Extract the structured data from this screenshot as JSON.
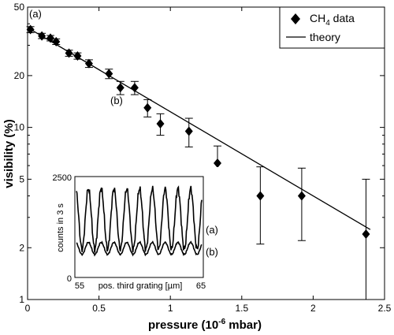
{
  "chart_data": [
    {
      "type": "scatter",
      "title": "",
      "xlabel": "pressure (10^-6 mbar)",
      "xlabel_parts": {
        "pre": "pressure (10",
        "sup": "-6",
        "post": " mbar)"
      },
      "ylabel": "visibility (%)",
      "xlim": [
        0,
        2.5
      ],
      "ylim": [
        1,
        50
      ],
      "yscale": "log",
      "x_ticks": [
        "0",
        "0.5",
        "1",
        "1.5",
        "2",
        "2.5"
      ],
      "y_ticks": [
        "1",
        "2",
        "5",
        "10",
        "20",
        "50"
      ],
      "legend": {
        "placement": "top-right",
        "entries": [
          {
            "label_main": "CH",
            "label_sub": "4",
            "label_tail": " data",
            "marker": "diamond"
          },
          {
            "label_main": "theory",
            "marker": "line"
          }
        ]
      },
      "annotations": [
        "(a)",
        "(b)"
      ],
      "series": [
        {
          "name": "CH4 data",
          "points": [
            {
              "x": 0.02,
              "y": 37,
              "err": 1.5
            },
            {
              "x": 0.1,
              "y": 34,
              "err": 1.2
            },
            {
              "x": 0.16,
              "y": 33,
              "err": 1.2
            },
            {
              "x": 0.2,
              "y": 31.5,
              "err": 1.2
            },
            {
              "x": 0.29,
              "y": 27,
              "err": 1.1
            },
            {
              "x": 0.35,
              "y": 26,
              "err": 1.1
            },
            {
              "x": 0.43,
              "y": 23.5,
              "err": 1.2
            },
            {
              "x": 0.57,
              "y": 20.5,
              "err": 1.3
            },
            {
              "x": 0.65,
              "y": 17,
              "err": 1.5
            },
            {
              "x": 0.75,
              "y": 17,
              "err": 1.5
            },
            {
              "x": 0.84,
              "y": 13,
              "err": 1.5
            },
            {
              "x": 0.93,
              "y": 10.5,
              "err": 1.5
            },
            {
              "x": 1.13,
              "y": 9.5,
              "err": 1.8
            },
            {
              "x": 1.33,
              "y": 6.2,
              "err": 1.6
            },
            {
              "x": 1.63,
              "y": 4.0,
              "err": 1.9
            },
            {
              "x": 1.92,
              "y": 4.0,
              "err": 1.8
            },
            {
              "x": 2.37,
              "y": 2.4,
              "err": 2.6
            }
          ]
        },
        {
          "name": "theory",
          "type": "line",
          "x": [
            0,
            2.4
          ],
          "y": [
            38,
            2.55
          ]
        }
      ]
    },
    {
      "type": "line",
      "title": "",
      "xlabel": "pos. third grating [µm]",
      "ylabel": "counts in 3 s",
      "xlim": [
        55,
        65
      ],
      "ylim": [
        0,
        2500
      ],
      "x_ticks": [
        "55",
        "65"
      ],
      "y_ticks": [
        "0",
        "2500"
      ],
      "series": [
        {
          "name": "(a)",
          "mean": 1450,
          "amplitude": 750,
          "periods": 9.8
        },
        {
          "name": "(b)",
          "mean": 720,
          "amplitude": 150,
          "periods": 9.8
        }
      ]
    }
  ]
}
